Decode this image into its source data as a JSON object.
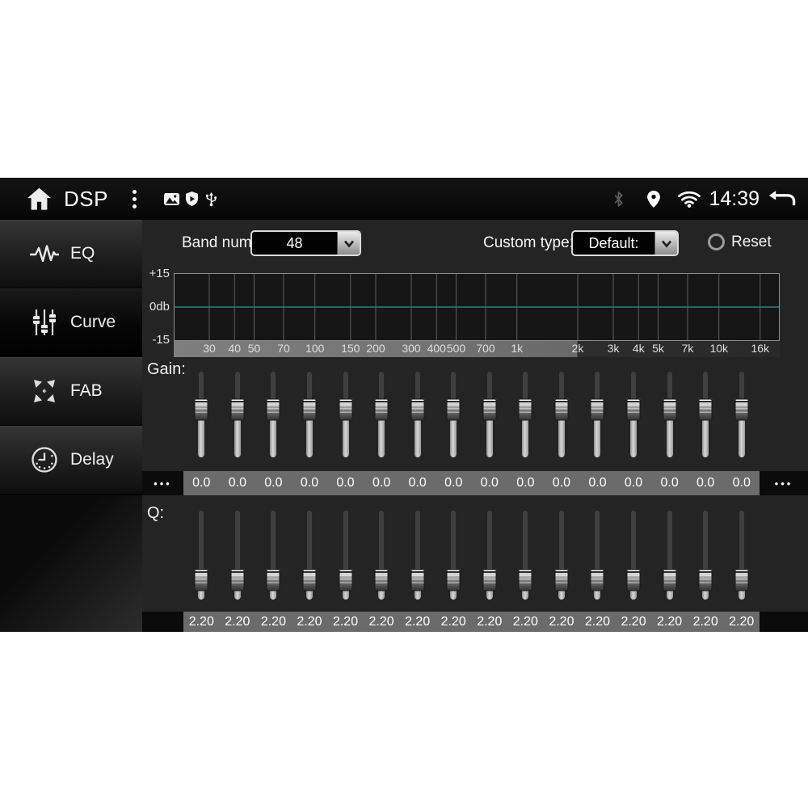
{
  "statusbar": {
    "title": "DSP",
    "time": "14:39",
    "left_icons": [
      "home-icon",
      "overflow-menu-icon",
      "image-icon",
      "shield-play-icon",
      "usb-icon"
    ],
    "right_icons": [
      "bluetooth-icon",
      "location-icon",
      "wifi-icon",
      "back-icon"
    ]
  },
  "sidebar": {
    "items": [
      {
        "label": "EQ",
        "icon": "eq-waveform-icon",
        "selected": false
      },
      {
        "label": "Curve",
        "icon": "curve-sliders-icon",
        "selected": true
      },
      {
        "label": "FAB",
        "icon": "fab-arrows-icon",
        "selected": false
      },
      {
        "label": "Delay",
        "icon": "delay-clock-icon",
        "selected": false
      }
    ]
  },
  "controls": {
    "band_num_label": "Band num:",
    "band_num_value": "48",
    "custom_type_label": "Custom type:",
    "custom_type_value": "Default:",
    "reset_label": "Reset"
  },
  "eq_graph": {
    "y_axis_labels": [
      "+15",
      "0db",
      "-15"
    ],
    "y_range_db": [
      -15,
      15
    ],
    "freq_labels": [
      "30",
      "40",
      "50",
      "70",
      "100",
      "150",
      "200",
      "300",
      "400",
      "500",
      "700",
      "1k",
      "2k",
      "3k",
      "4k",
      "5k",
      "7k",
      "10k",
      "16k"
    ],
    "curve_db": 0.0,
    "zero_line_color": "#2f7d8e"
  },
  "gain": {
    "label": "Gain:",
    "overflow_left": "•••",
    "overflow_right": "•••",
    "values": [
      "0.0",
      "0.0",
      "0.0",
      "0.0",
      "0.0",
      "0.0",
      "0.0",
      "0.0",
      "0.0",
      "0.0",
      "0.0",
      "0.0",
      "0.0",
      "0.0",
      "0.0",
      "0.0"
    ]
  },
  "q": {
    "label": "Q:",
    "values": [
      "2.20",
      "2.20",
      "2.20",
      "2.20",
      "2.20",
      "2.20",
      "2.20",
      "2.20",
      "2.20",
      "2.20",
      "2.20",
      "2.20",
      "2.20",
      "2.20",
      "2.20",
      "2.20"
    ]
  }
}
